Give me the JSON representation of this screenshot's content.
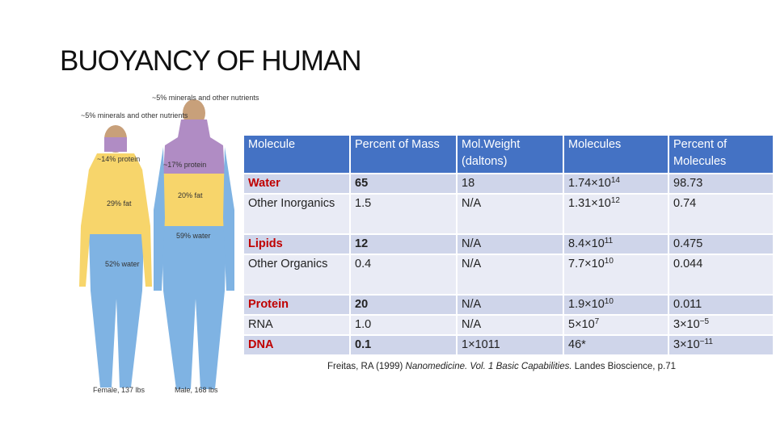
{
  "title": "BUOYANCY OF HUMAN",
  "figure": {
    "female": {
      "minerals": "~5% minerals and other nutrients",
      "protein": "~14% protein",
      "fat": "29% fat",
      "water": "52% water",
      "caption": "Female, 137 lbs"
    },
    "male": {
      "minerals": "~5% minerals and other nutrients",
      "protein": "~17% protein",
      "fat": "20% fat",
      "water": "59% water",
      "caption": "Male, 168 lbs"
    }
  },
  "table": {
    "header": [
      "Molecule",
      "Percent of Mass",
      "Mol.Weight (daltons)",
      "Molecules",
      "Percent of Molecules"
    ],
    "rows": [
      [
        "Water",
        "65",
        "18",
        {
          "base": "1.74×10",
          "exp": "14"
        },
        "98.73"
      ],
      [
        "Other Inorganics",
        "1.5",
        "N/A",
        {
          "base": "1.31×10",
          "exp": "12"
        },
        "0.74"
      ],
      [
        "Lipids",
        "12",
        "N/A",
        {
          "base": "8.4×10",
          "exp": "11"
        },
        "0.475"
      ],
      [
        "Other Organics",
        "0.4",
        "N/A",
        {
          "base": "7.7×10",
          "exp": "10"
        },
        "0.044"
      ],
      [
        "Protein",
        "20",
        "N/A",
        {
          "base": "1.9×10",
          "exp": "10"
        },
        "0.011"
      ],
      [
        "RNA",
        "1.0",
        "N/A",
        {
          "base": "5×10",
          "exp": "7"
        },
        {
          "base": "3×10",
          "exp": "−5"
        }
      ],
      [
        "DNA",
        "0.1",
        "1×1011",
        "46*",
        {
          "base": "3×10",
          "exp": "−11"
        }
      ]
    ]
  },
  "citation": {
    "before": "Freitas, RA (1999) ",
    "italic": "Nanomedicine. Vol. 1 Basic Capabilities.",
    "after": " Landes Bioscience, p.71"
  }
}
